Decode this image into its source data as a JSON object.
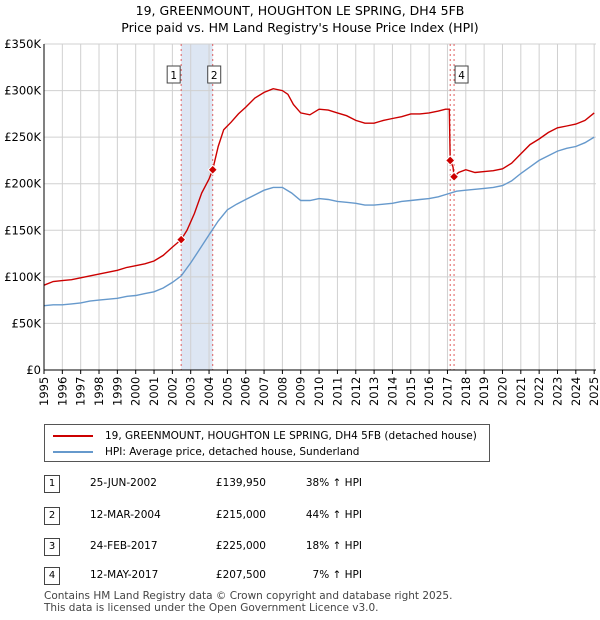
{
  "header": {
    "title_line1": "19, GREENMOUNT, HOUGHTON LE SPRING, DH4 5FB",
    "title_line2": "Price paid vs. HM Land Registry's House Price Index (HPI)"
  },
  "chart_data": {
    "type": "line",
    "title": "19, GREENMOUNT, HOUGHTON LE SPRING, DH4 5FB",
    "subtitle": "Price paid vs. HM Land Registry's House Price Index (HPI)",
    "xlabel": "",
    "ylabel": "",
    "xlim": [
      1995,
      2025.1
    ],
    "ylim": [
      0,
      350000
    ],
    "grid": true,
    "x_ticks": [
      "1995",
      "1996",
      "1997",
      "1998",
      "1999",
      "2000",
      "2001",
      "2002",
      "2003",
      "2004",
      "2005",
      "2006",
      "2007",
      "2008",
      "2009",
      "2010",
      "2011",
      "2012",
      "2013",
      "2014",
      "2015",
      "2016",
      "2017",
      "2018",
      "2019",
      "2020",
      "2021",
      "2022",
      "2023",
      "2024",
      "2025"
    ],
    "y_ticks": [
      {
        "value": 0,
        "label": "£0"
      },
      {
        "value": 50000,
        "label": "£50K"
      },
      {
        "value": 100000,
        "label": "£100K"
      },
      {
        "value": 150000,
        "label": "£150K"
      },
      {
        "value": 200000,
        "label": "£200K"
      },
      {
        "value": 250000,
        "label": "£250K"
      },
      {
        "value": 300000,
        "label": "£300K"
      },
      {
        "value": 350000,
        "label": "£350K"
      }
    ],
    "shaded_period": {
      "from": 2002.48,
      "to": 2004.2
    },
    "series": [
      {
        "name": "19, GREENMOUNT, HOUGHTON LE SPRING, DH4 5FB (detached house)",
        "color": "#cc0000",
        "points": [
          [
            1995.0,
            91000
          ],
          [
            1995.5,
            95000
          ],
          [
            1996.0,
            96000
          ],
          [
            1996.5,
            97000
          ],
          [
            1997.0,
            99000
          ],
          [
            1997.5,
            101000
          ],
          [
            1998.0,
            103000
          ],
          [
            1998.5,
            105000
          ],
          [
            1999.0,
            107000
          ],
          [
            1999.5,
            110000
          ],
          [
            2000.0,
            112000
          ],
          [
            2000.5,
            114000
          ],
          [
            2001.0,
            117000
          ],
          [
            2001.5,
            123000
          ],
          [
            2002.0,
            132000
          ],
          [
            2002.48,
            139950
          ],
          [
            2002.8,
            150000
          ],
          [
            2003.2,
            168000
          ],
          [
            2003.6,
            190000
          ],
          [
            2004.0,
            205000
          ],
          [
            2004.2,
            215000
          ],
          [
            2004.5,
            240000
          ],
          [
            2004.8,
            258000
          ],
          [
            2005.2,
            266000
          ],
          [
            2005.6,
            275000
          ],
          [
            2006.0,
            282000
          ],
          [
            2006.5,
            292000
          ],
          [
            2007.0,
            298000
          ],
          [
            2007.5,
            302000
          ],
          [
            2008.0,
            300000
          ],
          [
            2008.3,
            296000
          ],
          [
            2008.6,
            285000
          ],
          [
            2009.0,
            276000
          ],
          [
            2009.5,
            274000
          ],
          [
            2010.0,
            280000
          ],
          [
            2010.5,
            279000
          ],
          [
            2011.0,
            276000
          ],
          [
            2011.5,
            273000
          ],
          [
            2012.0,
            268000
          ],
          [
            2012.5,
            265000
          ],
          [
            2013.0,
            265000
          ],
          [
            2013.5,
            268000
          ],
          [
            2014.0,
            270000
          ],
          [
            2014.5,
            272000
          ],
          [
            2015.0,
            275000
          ],
          [
            2015.5,
            275000
          ],
          [
            2016.0,
            276000
          ],
          [
            2016.5,
            278000
          ],
          [
            2016.9,
            280000
          ],
          [
            2017.1,
            280000
          ],
          [
            2017.15,
            225000
          ],
          [
            2017.3,
            218000
          ],
          [
            2017.36,
            207500
          ],
          [
            2017.6,
            212000
          ],
          [
            2018.0,
            215000
          ],
          [
            2018.5,
            212000
          ],
          [
            2019.0,
            213000
          ],
          [
            2019.5,
            214000
          ],
          [
            2020.0,
            216000
          ],
          [
            2020.5,
            222000
          ],
          [
            2021.0,
            232000
          ],
          [
            2021.5,
            242000
          ],
          [
            2022.0,
            248000
          ],
          [
            2022.5,
            255000
          ],
          [
            2023.0,
            260000
          ],
          [
            2023.5,
            262000
          ],
          [
            2024.0,
            264000
          ],
          [
            2024.5,
            268000
          ],
          [
            2025.0,
            276000
          ]
        ]
      },
      {
        "name": "HPI: Average price, detached house, Sunderland",
        "color": "#6699cc",
        "points": [
          [
            1995.0,
            69000
          ],
          [
            1995.5,
            70000
          ],
          [
            1996.0,
            70000
          ],
          [
            1996.5,
            71000
          ],
          [
            1997.0,
            72000
          ],
          [
            1997.5,
            74000
          ],
          [
            1998.0,
            75000
          ],
          [
            1998.5,
            76000
          ],
          [
            1999.0,
            77000
          ],
          [
            1999.5,
            79000
          ],
          [
            2000.0,
            80000
          ],
          [
            2000.5,
            82000
          ],
          [
            2001.0,
            84000
          ],
          [
            2001.5,
            88000
          ],
          [
            2002.0,
            94000
          ],
          [
            2002.48,
            101000
          ],
          [
            2003.0,
            115000
          ],
          [
            2003.5,
            130000
          ],
          [
            2004.0,
            145000
          ],
          [
            2004.5,
            160000
          ],
          [
            2005.0,
            172000
          ],
          [
            2005.5,
            178000
          ],
          [
            2006.0,
            183000
          ],
          [
            2006.5,
            188000
          ],
          [
            2007.0,
            193000
          ],
          [
            2007.5,
            196000
          ],
          [
            2008.0,
            196000
          ],
          [
            2008.5,
            190000
          ],
          [
            2009.0,
            182000
          ],
          [
            2009.5,
            182000
          ],
          [
            2010.0,
            184000
          ],
          [
            2010.5,
            183000
          ],
          [
            2011.0,
            181000
          ],
          [
            2011.5,
            180000
          ],
          [
            2012.0,
            179000
          ],
          [
            2012.5,
            177000
          ],
          [
            2013.0,
            177000
          ],
          [
            2013.5,
            178000
          ],
          [
            2014.0,
            179000
          ],
          [
            2014.5,
            181000
          ],
          [
            2015.0,
            182000
          ],
          [
            2015.5,
            183000
          ],
          [
            2016.0,
            184000
          ],
          [
            2016.5,
            186000
          ],
          [
            2017.0,
            189000
          ],
          [
            2017.5,
            192000
          ],
          [
            2018.0,
            193000
          ],
          [
            2018.5,
            194000
          ],
          [
            2019.0,
            195000
          ],
          [
            2019.5,
            196000
          ],
          [
            2020.0,
            198000
          ],
          [
            2020.5,
            203000
          ],
          [
            2021.0,
            211000
          ],
          [
            2021.5,
            218000
          ],
          [
            2022.0,
            225000
          ],
          [
            2022.5,
            230000
          ],
          [
            2023.0,
            235000
          ],
          [
            2023.5,
            238000
          ],
          [
            2024.0,
            240000
          ],
          [
            2024.5,
            244000
          ],
          [
            2025.0,
            250000
          ]
        ]
      }
    ],
    "markers": [
      {
        "label": "1",
        "x": 2002.48,
        "y": 139950
      },
      {
        "label": "2",
        "x": 2004.2,
        "y": 215000
      },
      {
        "label": "3",
        "x": 2017.15,
        "y": 225000
      },
      {
        "label": "4",
        "x": 2017.36,
        "y": 207500
      }
    ],
    "top_labels": [
      "1",
      "2",
      "4"
    ]
  },
  "legend": {
    "items": [
      {
        "label": "19, GREENMOUNT, HOUGHTON LE SPRING, DH4 5FB (detached house)",
        "color": "#cc0000"
      },
      {
        "label": "HPI: Average price, detached house, Sunderland",
        "color": "#6699cc"
      }
    ]
  },
  "transactions": [
    {
      "num": "1",
      "date": "25-JUN-2002",
      "price": "£139,950",
      "hpi": "38% ↑ HPI"
    },
    {
      "num": "2",
      "date": "12-MAR-2004",
      "price": "£215,000",
      "hpi": "44% ↑ HPI"
    },
    {
      "num": "3",
      "date": "24-FEB-2017",
      "price": "£225,000",
      "hpi": "18% ↑ HPI"
    },
    {
      "num": "4",
      "date": "12-MAY-2017",
      "price": "£207,500",
      "hpi": "7% ↑ HPI"
    }
  ],
  "footer": {
    "line1": "Contains HM Land Registry data © Crown copyright and database right 2025.",
    "line2": "This data is licensed under the Open Government Licence v3.0."
  }
}
